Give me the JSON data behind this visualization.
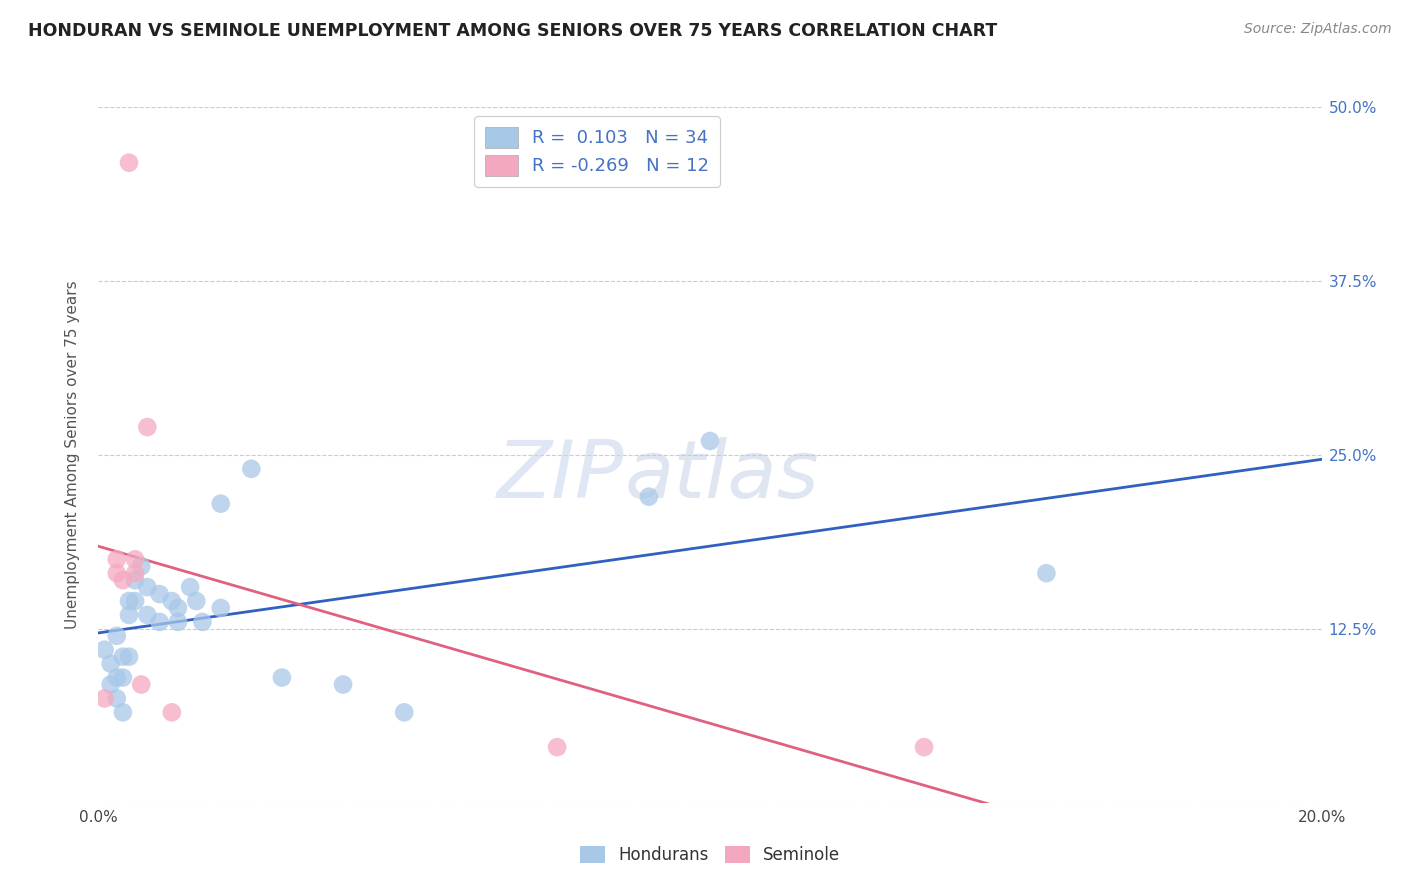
{
  "title": "HONDURAN VS SEMINOLE UNEMPLOYMENT AMONG SENIORS OVER 75 YEARS CORRELATION CHART",
  "source": "Source: ZipAtlas.com",
  "ylabel": "Unemployment Among Seniors over 75 years",
  "xlim": [
    0.0,
    0.2
  ],
  "ylim": [
    0.0,
    0.5
  ],
  "xticks": [
    0.0,
    0.025,
    0.05,
    0.075,
    0.1,
    0.125,
    0.15,
    0.175,
    0.2
  ],
  "yticks_right": [
    0.0,
    0.125,
    0.25,
    0.375,
    0.5
  ],
  "ytick_labels_right": [
    "",
    "12.5%",
    "25.0%",
    "37.5%",
    "50.0%"
  ],
  "watermark_zip": "ZIP",
  "watermark_atlas": "atlas",
  "honduran_color": "#a8c8e8",
  "seminole_color": "#f4a8c0",
  "honduran_line_color": "#3060c0",
  "seminole_line_color": "#e06080",
  "honduran_R": 0.103,
  "honduran_N": 34,
  "seminole_R": -0.269,
  "seminole_N": 12,
  "honduran_x": [
    0.001,
    0.002,
    0.002,
    0.003,
    0.003,
    0.003,
    0.004,
    0.004,
    0.004,
    0.005,
    0.005,
    0.005,
    0.006,
    0.006,
    0.007,
    0.008,
    0.008,
    0.01,
    0.01,
    0.012,
    0.013,
    0.013,
    0.015,
    0.016,
    0.017,
    0.02,
    0.02,
    0.025,
    0.03,
    0.04,
    0.05,
    0.09,
    0.1,
    0.155
  ],
  "honduran_y": [
    0.11,
    0.1,
    0.085,
    0.12,
    0.09,
    0.075,
    0.105,
    0.09,
    0.065,
    0.145,
    0.135,
    0.105,
    0.16,
    0.145,
    0.17,
    0.155,
    0.135,
    0.15,
    0.13,
    0.145,
    0.14,
    0.13,
    0.155,
    0.145,
    0.13,
    0.215,
    0.14,
    0.24,
    0.09,
    0.085,
    0.065,
    0.22,
    0.26,
    0.165
  ],
  "seminole_x": [
    0.001,
    0.003,
    0.003,
    0.004,
    0.005,
    0.006,
    0.006,
    0.007,
    0.008,
    0.012,
    0.075,
    0.135
  ],
  "seminole_y": [
    0.075,
    0.175,
    0.165,
    0.16,
    0.46,
    0.175,
    0.165,
    0.085,
    0.27,
    0.065,
    0.04,
    0.04
  ]
}
